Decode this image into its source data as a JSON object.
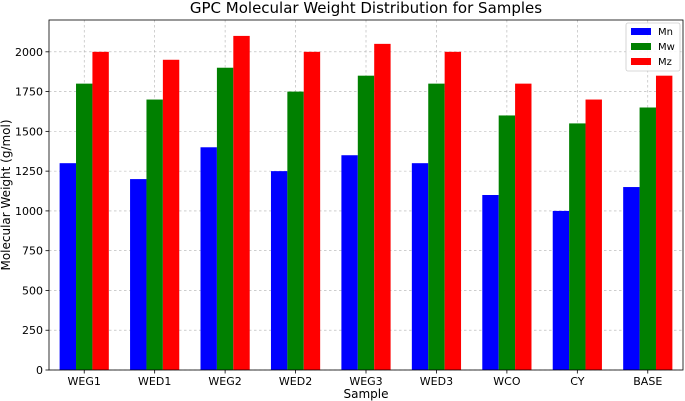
{
  "chart_data": {
    "type": "bar",
    "title": "GPC Molecular Weight Distribution for Samples",
    "xlabel": "Sample",
    "ylabel": "Molecular Weight (g/mol)",
    "categories": [
      "WEG1",
      "WED1",
      "WEG2",
      "WED2",
      "WEG3",
      "WED3",
      "WCO",
      "CY",
      "BASE"
    ],
    "series": [
      {
        "name": "Mn",
        "color": "#0000ff",
        "values": [
          1300,
          1200,
          1400,
          1250,
          1350,
          1300,
          1100,
          1000,
          1150
        ]
      },
      {
        "name": "Mw",
        "color": "#008000",
        "values": [
          1800,
          1700,
          1900,
          1750,
          1850,
          1800,
          1600,
          1550,
          1650
        ]
      },
      {
        "name": "Mz",
        "color": "#ff0000",
        "values": [
          2000,
          1950,
          2100,
          2000,
          2050,
          2000,
          1800,
          1700,
          1850
        ]
      }
    ],
    "ylim": [
      0,
      2200
    ],
    "yticks": [
      0,
      250,
      500,
      750,
      1000,
      1250,
      1500,
      1750,
      2000
    ],
    "grid": true,
    "legend_position": "top-right"
  }
}
